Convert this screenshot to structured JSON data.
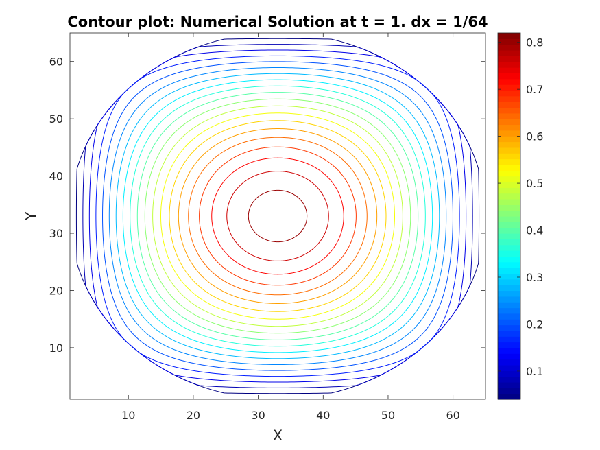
{
  "chart_data": {
    "type": "contour",
    "title": "Contour plot: Numerical Solution at t = 1. dx = 1/64",
    "xlabel": "X",
    "ylabel": "Y",
    "xlim": [
      1,
      65
    ],
    "ylim": [
      1,
      65
    ],
    "xticks": [
      10,
      20,
      30,
      40,
      50,
      60
    ],
    "yticks": [
      10,
      20,
      30,
      40,
      50,
      60
    ],
    "center": [
      33,
      33
    ],
    "peak_value": 0.82,
    "levels": [
      0.04,
      0.08,
      0.12,
      0.16,
      0.2,
      0.24,
      0.28,
      0.32,
      0.36,
      0.4,
      0.44,
      0.48,
      0.52,
      0.56,
      0.6,
      0.64,
      0.68,
      0.72,
      0.76,
      0.8
    ],
    "colormap": "jet",
    "colorbar": {
      "min": 0.04,
      "max": 0.82,
      "ticks": [
        "0.1",
        "0.2",
        "0.3",
        "0.4",
        "0.5",
        "0.6",
        "0.7",
        "0.8"
      ],
      "tick_values": [
        0.1,
        0.2,
        0.3,
        0.4,
        0.5,
        0.6,
        0.7,
        0.8
      ]
    }
  }
}
